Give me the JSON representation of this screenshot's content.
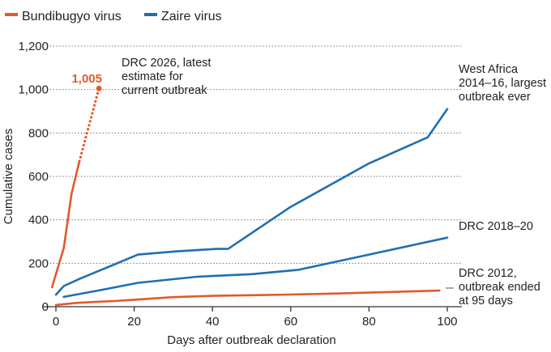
{
  "chart_data": {
    "type": "line",
    "xlabel": "Days after outbreak declaration",
    "ylabel": "Cumulative cases",
    "xlim": [
      0,
      100
    ],
    "ylim": [
      0,
      1200
    ],
    "x_ticks": [
      "0",
      "20",
      "40",
      "60",
      "80",
      "100"
    ],
    "y_ticks": [
      "0",
      "200",
      "400",
      "600",
      "800",
      "1,000",
      "1,200"
    ],
    "grid": "horizontal dotted",
    "legend_position": "top-left",
    "legend": [
      {
        "label": "Bundibugyo virus",
        "color": "#e15a2a"
      },
      {
        "label": "Zaire virus",
        "color": "#1f6fb2"
      }
    ],
    "series": [
      {
        "name": "DRC 2026",
        "virus": "Bundibugyo virus",
        "color": "#e15a2a",
        "x": [
          -1,
          2,
          4,
          6
        ],
        "y": [
          90,
          270,
          520,
          670
        ],
        "dotted_extension": {
          "x": [
            6,
            11
          ],
          "y": [
            670,
            1005
          ]
        }
      },
      {
        "name": "DRC 2012",
        "virus": "Bundibugyo virus",
        "color": "#e15a2a",
        "x": [
          0,
          5,
          10,
          15,
          20,
          25,
          30,
          40,
          50,
          60,
          70,
          80,
          90,
          98
        ],
        "y": [
          8,
          17,
          22,
          26,
          32,
          38,
          44,
          50,
          53,
          56,
          60,
          65,
          70,
          74
        ]
      },
      {
        "name": "West Africa 2014–16",
        "virus": "Zaire virus",
        "color": "#1f6fb2",
        "x": [
          0,
          2,
          6,
          11,
          21,
          31,
          41,
          44,
          60,
          80,
          95,
          100
        ],
        "y": [
          55,
          95,
          128,
          165,
          240,
          255,
          266,
          266,
          460,
          660,
          780,
          910
        ]
      },
      {
        "name": "DRC 2018–20",
        "virus": "Zaire virus",
        "color": "#1f6fb2",
        "x": [
          2,
          11,
          21,
          36,
          50,
          62,
          80,
          100
        ],
        "y": [
          45,
          75,
          110,
          138,
          150,
          170,
          240,
          318
        ]
      }
    ],
    "annotations": {
      "drc2026_value": "1,005",
      "drc2026_lines": [
        "DRC 2026, latest",
        "estimate for",
        "current outbreak"
      ],
      "west_africa_lines": [
        "West Africa",
        "2014–16, largest",
        "outbreak ever"
      ],
      "drc2018_lines": [
        "DRC 2018–20"
      ],
      "drc2012_lines": [
        "DRC 2012,",
        "outbreak ended",
        "at 95 days"
      ]
    }
  }
}
